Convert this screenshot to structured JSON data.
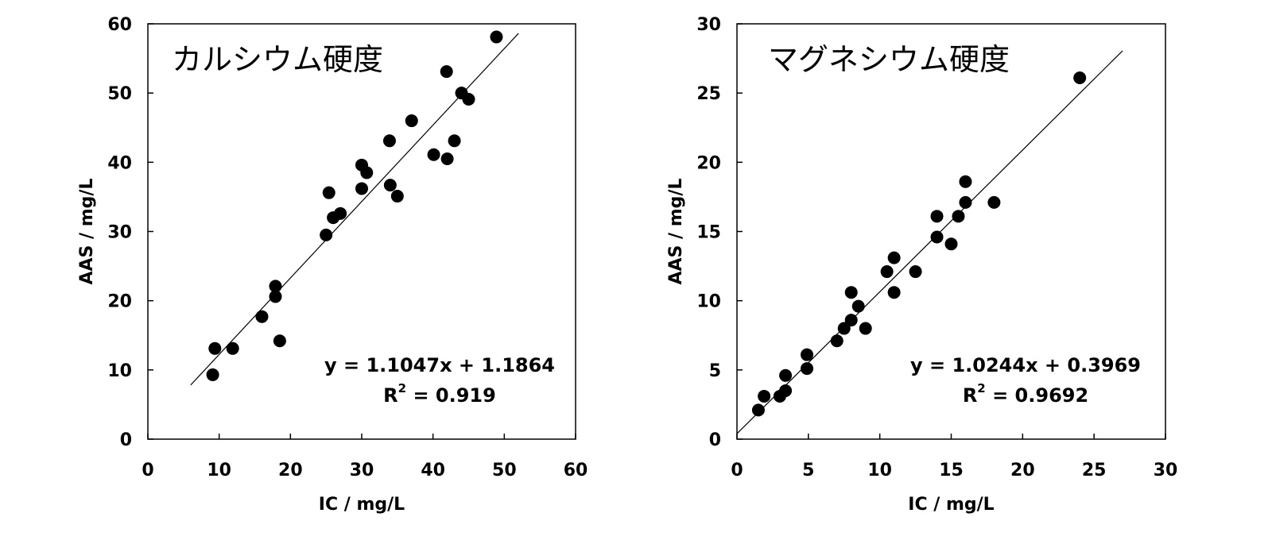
{
  "chart_data": [
    {
      "type": "scatter",
      "title": "カルシウム硬度",
      "xlabel": "IC / mg/L",
      "ylabel": "AAS / mg/L",
      "xlim": [
        0,
        60
      ],
      "ylim": [
        0,
        60
      ],
      "xticks": [
        "0",
        "10",
        "20",
        "30",
        "40",
        "50",
        "60"
      ],
      "yticks": [
        "0",
        "10",
        "20",
        "30",
        "40",
        "50",
        "60"
      ],
      "grid": false,
      "points": [
        [
          9.1,
          9.3
        ],
        [
          9.4,
          13.1
        ],
        [
          11.9,
          13.1
        ],
        [
          16.0,
          17.7
        ],
        [
          17.9,
          22.1
        ],
        [
          17.9,
          20.6
        ],
        [
          18.5,
          14.2
        ],
        [
          25.0,
          29.5
        ],
        [
          25.4,
          35.6
        ],
        [
          26.0,
          32.0
        ],
        [
          27.0,
          32.6
        ],
        [
          30.0,
          39.6
        ],
        [
          30.0,
          36.2
        ],
        [
          30.7,
          38.5
        ],
        [
          33.9,
          43.1
        ],
        [
          34.0,
          36.7
        ],
        [
          35.0,
          35.1
        ],
        [
          37.0,
          46.0
        ],
        [
          40.1,
          41.1
        ],
        [
          41.9,
          53.1
        ],
        [
          42.0,
          40.5
        ],
        [
          43.0,
          43.1
        ],
        [
          44.0,
          50.0
        ],
        [
          45.0,
          49.1
        ],
        [
          48.9,
          58.1
        ]
      ],
      "trendline": {
        "slope": 1.1047,
        "intercept": 1.1864,
        "x_range": [
          6,
          52
        ]
      },
      "equation": "y = 1.1047x + 1.1864",
      "r2_prefix": "R",
      "r2_sup": "2",
      "r2_value": " = 0.919"
    },
    {
      "type": "scatter",
      "title": "マグネシウム硬度",
      "xlabel": "IC / mg/L",
      "ylabel": "AAS / mg/L",
      "xlim": [
        0,
        30
      ],
      "ylim": [
        0,
        30
      ],
      "xticks": [
        "0",
        "5",
        "10",
        "15",
        "20",
        "25",
        "30"
      ],
      "yticks": [
        "0",
        "5",
        "10",
        "15",
        "20",
        "25",
        "30"
      ],
      "grid": false,
      "points": [
        [
          1.5,
          2.1
        ],
        [
          1.9,
          3.1
        ],
        [
          3.0,
          3.1
        ],
        [
          3.4,
          3.5
        ],
        [
          3.4,
          4.6
        ],
        [
          4.9,
          5.1
        ],
        [
          4.9,
          6.1
        ],
        [
          7.0,
          7.1
        ],
        [
          7.5,
          8.0
        ],
        [
          8.0,
          8.6
        ],
        [
          8.0,
          10.6
        ],
        [
          8.5,
          9.6
        ],
        [
          9.0,
          8.0
        ],
        [
          10.5,
          12.1
        ],
        [
          11.0,
          13.1
        ],
        [
          11.0,
          10.6
        ],
        [
          12.5,
          12.1
        ],
        [
          14.0,
          16.1
        ],
        [
          14.0,
          14.6
        ],
        [
          15.0,
          14.1
        ],
        [
          15.5,
          16.1
        ],
        [
          16.0,
          18.6
        ],
        [
          16.0,
          17.1
        ],
        [
          18.0,
          17.1
        ],
        [
          24.0,
          26.1
        ]
      ],
      "trendline": {
        "slope": 1.0244,
        "intercept": 0.3969,
        "x_range": [
          0,
          27
        ]
      },
      "equation": "y = 1.0244x + 0.3969",
      "r2_prefix": "R",
      "r2_sup": "2",
      "r2_value": " = 0.9692"
    }
  ]
}
